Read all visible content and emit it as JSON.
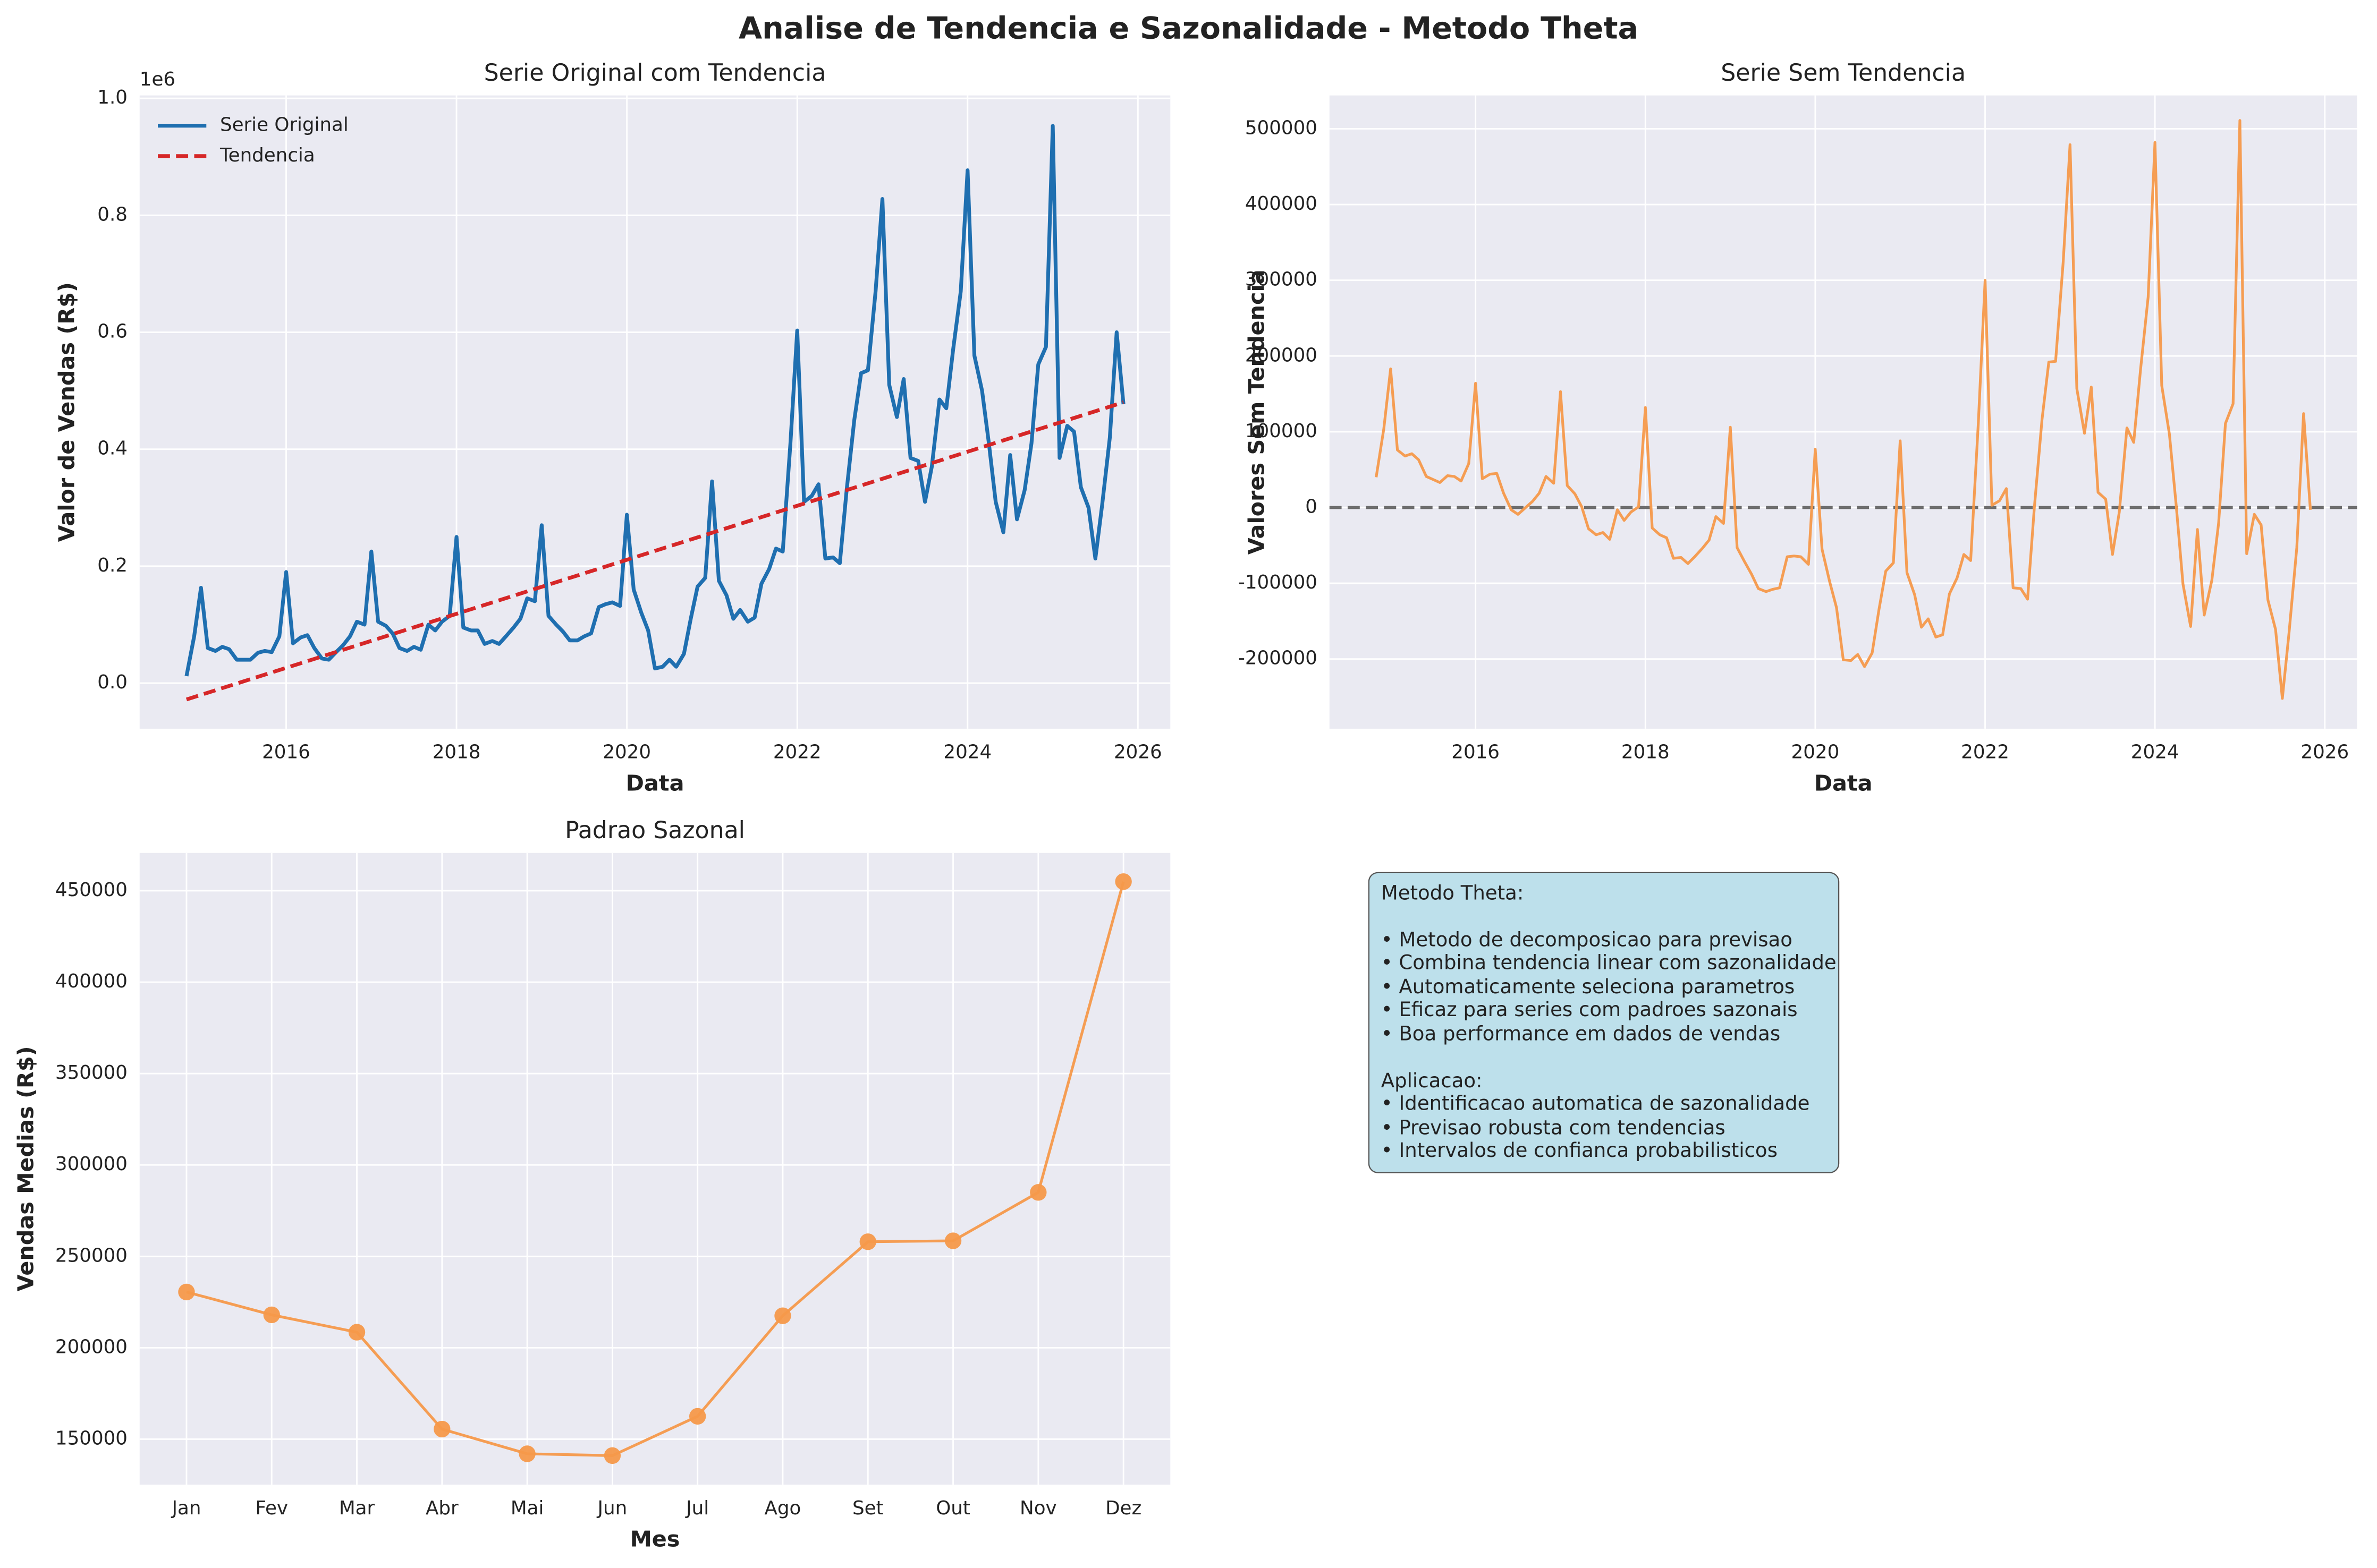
{
  "title": "Analise de Tendencia e Sazonalidade - Metodo Theta",
  "chart_data": [
    {
      "type": "line",
      "title": "Serie Original com Tendencia",
      "x_label": "Data",
      "y_label": "Valor de Vendas (R$)",
      "y_offset_label": "1e6",
      "legend": "upper left",
      "grid": true,
      "x": [
        2014.83,
        2014.92,
        2015.0,
        2015.08,
        2015.17,
        2015.25,
        2015.33,
        2015.42,
        2015.5,
        2015.58,
        2015.67,
        2015.75,
        2015.83,
        2015.92,
        2016.0,
        2016.08,
        2016.17,
        2016.25,
        2016.33,
        2016.42,
        2016.5,
        2016.58,
        2016.67,
        2016.75,
        2016.83,
        2016.92,
        2017.0,
        2017.08,
        2017.17,
        2017.25,
        2017.33,
        2017.42,
        2017.5,
        2017.58,
        2017.67,
        2017.75,
        2017.83,
        2017.92,
        2018.0,
        2018.08,
        2018.17,
        2018.25,
        2018.33,
        2018.42,
        2018.5,
        2018.58,
        2018.67,
        2018.75,
        2018.83,
        2018.92,
        2019.0,
        2019.08,
        2019.17,
        2019.25,
        2019.33,
        2019.42,
        2019.5,
        2019.58,
        2019.67,
        2019.75,
        2019.83,
        2019.92,
        2020.0,
        2020.08,
        2020.17,
        2020.25,
        2020.33,
        2020.42,
        2020.5,
        2020.58,
        2020.67,
        2020.75,
        2020.83,
        2020.92,
        2021.0,
        2021.08,
        2021.17,
        2021.25,
        2021.33,
        2021.42,
        2021.5,
        2021.58,
        2021.67,
        2021.75,
        2021.83,
        2021.92,
        2022.0,
        2022.08,
        2022.17,
        2022.25,
        2022.33,
        2022.42,
        2022.5,
        2022.58,
        2022.67,
        2022.75,
        2022.83,
        2022.92,
        2023.0,
        2023.08,
        2023.17,
        2023.25,
        2023.33,
        2023.42,
        2023.5,
        2023.58,
        2023.67,
        2023.75,
        2023.83,
        2023.92,
        2024.0,
        2024.08,
        2024.17,
        2024.25,
        2024.33,
        2024.42,
        2024.5,
        2024.58,
        2024.67,
        2024.75,
        2024.83,
        2024.92,
        2025.0,
        2025.08,
        2025.17,
        2025.25,
        2025.33,
        2025.42,
        2025.5,
        2025.58,
        2025.67,
        2025.75,
        2025.83
      ],
      "series": [
        {
          "name": "Serie Original",
          "color": "#1f6fb0",
          "values": [
            0.012,
            0.08,
            0.163,
            0.06,
            0.055,
            0.062,
            0.058,
            0.04,
            0.04,
            0.04,
            0.052,
            0.055,
            0.053,
            0.08,
            0.19,
            0.068,
            0.078,
            0.082,
            0.06,
            0.042,
            0.04,
            0.052,
            0.065,
            0.08,
            0.105,
            0.1,
            0.225,
            0.105,
            0.098,
            0.085,
            0.06,
            0.055,
            0.062,
            0.057,
            0.1,
            0.09,
            0.105,
            0.115,
            0.25,
            0.095,
            0.09,
            0.09,
            0.067,
            0.072,
            0.067,
            0.08,
            0.095,
            0.11,
            0.145,
            0.14,
            0.27,
            0.115,
            0.1,
            0.088,
            0.073,
            0.073,
            0.08,
            0.085,
            0.13,
            0.135,
            0.138,
            0.132,
            0.288,
            0.16,
            0.12,
            0.09,
            0.025,
            0.028,
            0.04,
            0.028,
            0.05,
            0.11,
            0.165,
            0.18,
            0.345,
            0.175,
            0.15,
            0.11,
            0.125,
            0.105,
            0.112,
            0.17,
            0.195,
            0.23,
            0.225,
            0.41,
            0.603,
            0.31,
            0.32,
            0.34,
            0.213,
            0.215,
            0.205,
            0.33,
            0.45,
            0.53,
            0.535,
            0.67,
            0.828,
            0.51,
            0.455,
            0.52,
            0.385,
            0.38,
            0.31,
            0.37,
            0.485,
            0.47,
            0.57,
            0.67,
            0.877,
            0.56,
            0.5,
            0.41,
            0.31,
            0.258,
            0.39,
            0.28,
            0.33,
            0.41,
            0.545,
            0.575,
            0.953,
            0.385,
            0.44,
            0.43,
            0.335,
            0.3,
            0.213,
            0.305,
            0.42,
            0.6,
            0.477
          ]
        },
        {
          "name": "Tendencia",
          "color": "#d62728",
          "style": "dashed",
          "x": [
            2014.83,
            2025.83
          ],
          "values": [
            -0.028,
            0.4802
          ]
        }
      ],
      "xlim": [
        2014.28,
        2026.38
      ],
      "xticks": [
        2016,
        2018,
        2020,
        2022,
        2024,
        2026
      ],
      "ylim": [
        -0.078,
        1.005
      ],
      "yticks": [
        {
          "value": 0,
          "label": "0.0"
        },
        0.2,
        0.4,
        0.6,
        0.8,
        {
          "value": 1,
          "label": "1.0"
        }
      ]
    },
    {
      "type": "line",
      "title": "Serie Sem Tendencia",
      "x_label": "Data",
      "y_label": "Valores Sem Tendencia",
      "grid": true,
      "color": "#f5994a",
      "hline": 0,
      "x": [
        2014.83,
        2014.92,
        2015.0,
        2015.08,
        2015.17,
        2015.25,
        2015.33,
        2015.42,
        2015.5,
        2015.58,
        2015.67,
        2015.75,
        2015.83,
        2015.92,
        2016.0,
        2016.08,
        2016.17,
        2016.25,
        2016.33,
        2016.42,
        2016.5,
        2016.58,
        2016.67,
        2016.75,
        2016.83,
        2016.92,
        2017.0,
        2017.08,
        2017.17,
        2017.25,
        2017.33,
        2017.42,
        2017.5,
        2017.58,
        2017.67,
        2017.75,
        2017.83,
        2017.92,
        2018.0,
        2018.08,
        2018.17,
        2018.25,
        2018.33,
        2018.42,
        2018.5,
        2018.58,
        2018.67,
        2018.75,
        2018.83,
        2018.92,
        2019.0,
        2019.08,
        2019.17,
        2019.25,
        2019.33,
        2019.42,
        2019.5,
        2019.58,
        2019.67,
        2019.75,
        2019.83,
        2019.92,
        2020.0,
        2020.08,
        2020.17,
        2020.25,
        2020.33,
        2020.42,
        2020.5,
        2020.58,
        2020.67,
        2020.75,
        2020.83,
        2020.92,
        2021.0,
        2021.08,
        2021.17,
        2021.25,
        2021.33,
        2021.42,
        2021.5,
        2021.58,
        2021.67,
        2021.75,
        2021.83,
        2021.92,
        2022.0,
        2022.08,
        2022.17,
        2022.25,
        2022.33,
        2022.42,
        2022.5,
        2022.58,
        2022.67,
        2022.75,
        2022.83,
        2022.92,
        2023.0,
        2023.08,
        2023.17,
        2023.25,
        2023.33,
        2023.42,
        2023.5,
        2023.58,
        2023.67,
        2023.75,
        2023.83,
        2023.92,
        2024.0,
        2024.08,
        2024.17,
        2024.25,
        2024.33,
        2024.42,
        2024.5,
        2024.58,
        2024.67,
        2024.75,
        2024.83,
        2024.92,
        2025.0,
        2025.08,
        2025.17,
        2025.25,
        2025.33,
        2025.42,
        2025.5,
        2025.58,
        2025.67,
        2025.75,
        2025.83
      ],
      "values": [
        40000,
        104000,
        183000,
        76000,
        68000,
        71000,
        63000,
        41000,
        37000,
        33000,
        42000,
        41000,
        35000,
        58000,
        164000,
        38000,
        44000,
        45000,
        19000,
        -3000,
        -9000,
        -1000,
        8000,
        19000,
        41000,
        32000,
        153000,
        29000,
        18000,
        1000,
        -28000,
        -36000,
        -33000,
        -42000,
        -3000,
        -17000,
        -6000,
        1000,
        132000,
        -27000,
        -36000,
        -40000,
        -67000,
        -66000,
        -74000,
        -65000,
        -54000,
        -43000,
        -12000,
        -21000,
        106000,
        -53000,
        -72000,
        -88000,
        -107000,
        -111000,
        -108000,
        -106000,
        -65000,
        -64000,
        -65000,
        -75000,
        77000,
        -55000,
        -98000,
        -132000,
        -201000,
        -202000,
        -194000,
        -210000,
        -192000,
        -135000,
        -84000,
        -73000,
        88000,
        -86000,
        -115000,
        -158000,
        -147000,
        -171000,
        -168000,
        -114000,
        -93000,
        -62000,
        -70000,
        111000,
        300000,
        3000,
        9000,
        25000,
        -106000,
        -107000,
        -121000,
        0,
        116000,
        192000,
        193000,
        325000,
        479000,
        157000,
        98000,
        159000,
        20000,
        11000,
        -62000,
        -6000,
        105000,
        86000,
        182000,
        278000,
        482000,
        161000,
        97000,
        3000,
        -101000,
        -157000,
        -29000,
        -142000,
        -96000,
        -20000,
        111000,
        137000,
        511000,
        -61000,
        -9000,
        -23000,
        -122000,
        -161000,
        -252000,
        -164000,
        -53000,
        124000,
        -3000
      ],
      "xlim": [
        2014.28,
        2026.38
      ],
      "xticks": [
        2016,
        2018,
        2020,
        2022,
        2024,
        2026
      ],
      "ylim": [
        -292000,
        544000
      ],
      "yticks": [
        -200000,
        -100000,
        0,
        100000,
        200000,
        300000,
        400000,
        500000
      ]
    },
    {
      "type": "line",
      "title": "Padrao Sazonal",
      "x_label": "Mes",
      "y_label": "Vendas Medias (R$)",
      "grid": true,
      "color": "#f5994a",
      "markers": true,
      "categories": [
        "Jan",
        "Fev",
        "Mar",
        "Abr",
        "Mai",
        "Jun",
        "Jul",
        "Ago",
        "Set",
        "Out",
        "Nov",
        "Dez"
      ],
      "values": [
        230500,
        218000,
        208500,
        155500,
        142000,
        141000,
        162500,
        217500,
        258000,
        258500,
        285000,
        455000
      ],
      "ylim": [
        125100,
        470700
      ],
      "yticks": [
        150000,
        200000,
        250000,
        300000,
        350000,
        400000,
        450000
      ]
    }
  ],
  "text_box": {
    "heading": "Metodo Theta:",
    "items": [
      "• Metodo de decomposicao para previsao",
      "• Combina tendencia linear com sazonalidade",
      "• Automaticamente seleciona parametros",
      "• Eficaz para series com padroes sazonais",
      "• Boa performance em dados de vendas"
    ],
    "heading2": "Aplicacao:",
    "items2": [
      "• Identificacao automatica de sazonalidade",
      "• Previsao robusta com tendencias",
      "• Intervalos de confianca probabilisticos"
    ]
  }
}
